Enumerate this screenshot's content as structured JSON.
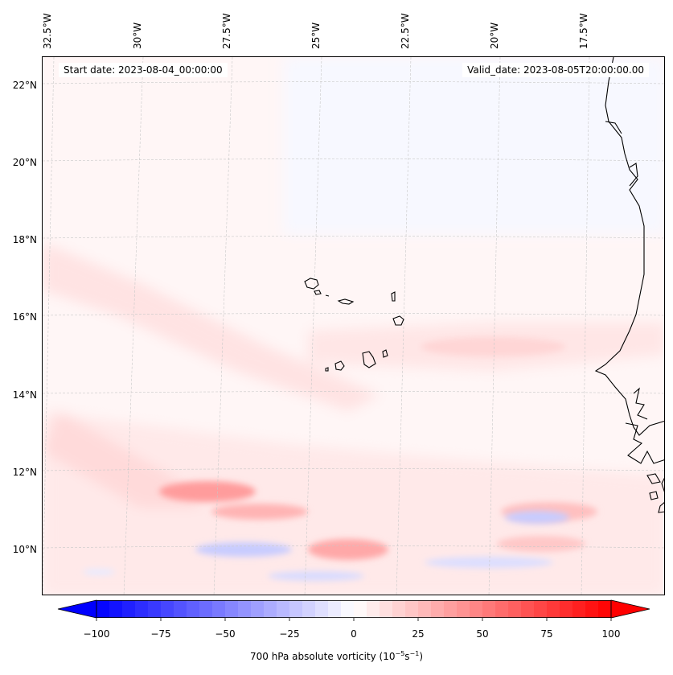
{
  "map": {
    "title_left": "Start date: 2023-08-04_00:00:00",
    "title_right": "Valid_date: 2023-08-05T20:00:00.00",
    "field": "700 hPa absolute vorticity",
    "lon_labels": [
      "32.5°W",
      "30°W",
      "27.5°W",
      "25°W",
      "22.5°W",
      "20°W",
      "17.5°W"
    ],
    "lat_labels": [
      "22°N",
      "20°N",
      "18°N",
      "16°N",
      "14°N",
      "12°N",
      "10°N"
    ],
    "features": [
      {
        "name": "Cape Verde Islands",
        "type": "coastline"
      },
      {
        "name": "West African coast (Mauritania / Senegal / Guinea-Bissau)",
        "type": "coastline"
      }
    ],
    "vorticity_features": [
      {
        "region": "near 11.5°N, 28°W",
        "sign": "positive",
        "approx_max": 50
      },
      {
        "region": "near 9.8°N, 24°W",
        "sign": "positive",
        "approx_max": 45
      },
      {
        "region": "near 10.8°N, 19°W",
        "sign": "positive",
        "approx_max": 40
      },
      {
        "region": "near 10°N, 27°W",
        "sign": "negative",
        "approx_min": -25
      },
      {
        "region": "near 10.5°N, 20.5°W",
        "sign": "negative",
        "approx_min": -25
      }
    ]
  },
  "colorbar": {
    "label_main": "700 hPa absolute vorticity (10",
    "label_exp1": "−5",
    "label_mid": "s",
    "label_exp2": "−1",
    "label_end": ")",
    "ticks": [
      "−100",
      "−75",
      "−50",
      "−25",
      "0",
      "25",
      "50",
      "75",
      "100"
    ],
    "tick_values": [
      -100,
      -75,
      -50,
      -25,
      0,
      25,
      50,
      75,
      100
    ],
    "range": [
      -100,
      100
    ],
    "extend": "both",
    "cmap": "bwr",
    "colors": {
      "min": "#0000ff",
      "mid": "#ffffff",
      "max": "#ff0000"
    }
  }
}
